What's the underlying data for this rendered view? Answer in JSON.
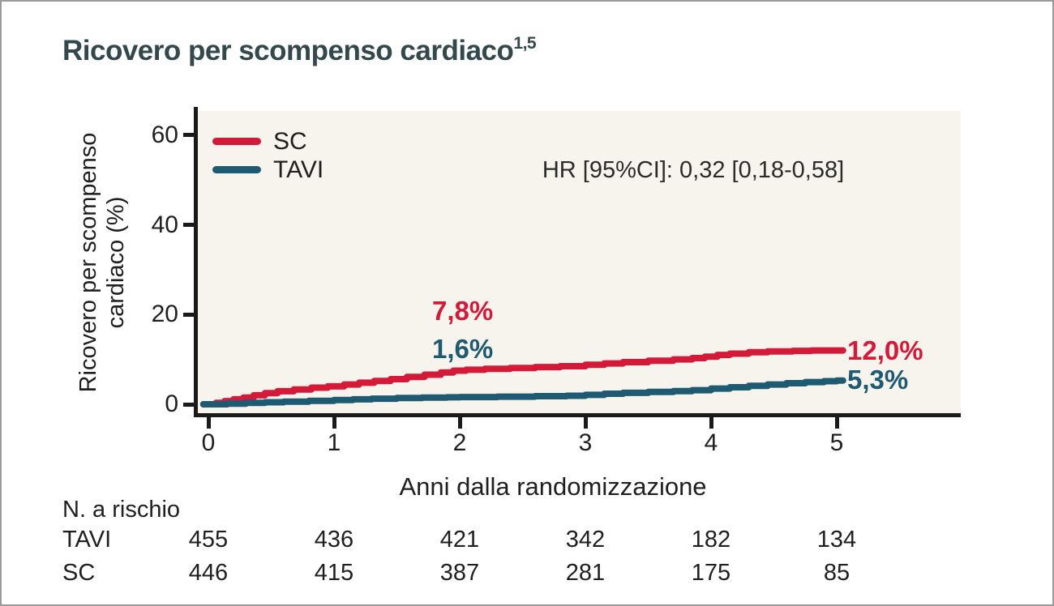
{
  "title": {
    "text": "Ricovero per scompenso cardiaco",
    "superscript": "1,5"
  },
  "colors": {
    "sc_red": "#d41a38",
    "tavi_teal": "#1e5a71",
    "title_teal": "#33484c",
    "plot_background": "#f7f4ee",
    "axis_black": "#1a1a1a",
    "frame_gray": "#9b9b9b"
  },
  "chart_data": {
    "type": "line",
    "style": "kaplan-meier-step",
    "title": "Ricovero per scompenso cardiaco",
    "xlabel": "Anni dalla randomizzazione",
    "ylabel": "Ricovero per scompenso cardiaco (%)",
    "ylabel_lines": [
      "Ricovero per scompenso",
      "cardiaco (%)"
    ],
    "xlim": [
      0,
      5.8
    ],
    "ylim": [
      0,
      65
    ],
    "xticks": [
      0,
      1,
      2,
      3,
      4,
      5
    ],
    "yticks": [
      0,
      20,
      40,
      60
    ],
    "grid": false,
    "legend_position": "top-left-inside",
    "hr_annotation": "HR [95%CI]: 0,32 [0,18-0,58]",
    "series": [
      {
        "name": "SC",
        "color": "#d41a38",
        "landmark_2yr": "7,8%",
        "final_value": "12,0%",
        "points": [
          [
            -0.04,
            0
          ],
          [
            0.06,
            0.3
          ],
          [
            0.13,
            0.7
          ],
          [
            0.2,
            1.1
          ],
          [
            0.28,
            1.5
          ],
          [
            0.36,
            2.0
          ],
          [
            0.45,
            2.5
          ],
          [
            0.55,
            2.9
          ],
          [
            0.68,
            3.3
          ],
          [
            0.82,
            3.7
          ],
          [
            0.95,
            4.0
          ],
          [
            1.08,
            4.4
          ],
          [
            1.2,
            4.8
          ],
          [
            1.32,
            5.2
          ],
          [
            1.45,
            5.6
          ],
          [
            1.58,
            6.1
          ],
          [
            1.72,
            6.6
          ],
          [
            1.85,
            7.1
          ],
          [
            1.95,
            7.5
          ],
          [
            2.05,
            7.7
          ],
          [
            2.2,
            7.9
          ],
          [
            2.4,
            8.1
          ],
          [
            2.6,
            8.3
          ],
          [
            2.8,
            8.5
          ],
          [
            3.0,
            8.8
          ],
          [
            3.15,
            9.1
          ],
          [
            3.3,
            9.4
          ],
          [
            3.5,
            9.7
          ],
          [
            3.7,
            10.0
          ],
          [
            3.85,
            10.3
          ],
          [
            3.95,
            10.6
          ],
          [
            4.05,
            11.0
          ],
          [
            4.15,
            11.3
          ],
          [
            4.3,
            11.6
          ],
          [
            4.45,
            11.8
          ],
          [
            4.65,
            11.9
          ],
          [
            4.8,
            12.0
          ],
          [
            5.05,
            12.0
          ]
        ]
      },
      {
        "name": "TAVI",
        "color": "#1e5a71",
        "landmark_2yr": "1,6%",
        "final_value": "5,3%",
        "points": [
          [
            -0.04,
            0
          ],
          [
            0.15,
            0.15
          ],
          [
            0.3,
            0.3
          ],
          [
            0.45,
            0.45
          ],
          [
            0.6,
            0.6
          ],
          [
            0.8,
            0.75
          ],
          [
            1.0,
            0.95
          ],
          [
            1.15,
            1.1
          ],
          [
            1.3,
            1.25
          ],
          [
            1.5,
            1.4
          ],
          [
            1.7,
            1.5
          ],
          [
            1.9,
            1.55
          ],
          [
            2.0,
            1.6
          ],
          [
            2.3,
            1.7
          ],
          [
            2.6,
            1.8
          ],
          [
            2.85,
            1.9
          ],
          [
            3.0,
            2.1
          ],
          [
            3.15,
            2.35
          ],
          [
            3.3,
            2.55
          ],
          [
            3.5,
            2.75
          ],
          [
            3.7,
            2.95
          ],
          [
            3.85,
            3.15
          ],
          [
            4.0,
            3.5
          ],
          [
            4.15,
            3.8
          ],
          [
            4.3,
            4.1
          ],
          [
            4.45,
            4.4
          ],
          [
            4.6,
            4.7
          ],
          [
            4.75,
            4.95
          ],
          [
            4.9,
            5.15
          ],
          [
            5.0,
            5.3
          ],
          [
            5.05,
            5.3
          ]
        ]
      }
    ],
    "value_labels": {
      "sc_mid": "7,8%",
      "tavi_mid": "1,6%",
      "sc_end": "12,0%",
      "tavi_end": "5,3%"
    }
  },
  "risk_table": {
    "title": "N. a rischio",
    "columns": [
      0,
      1,
      2,
      3,
      4,
      5
    ],
    "rows": [
      {
        "label": "TAVI",
        "values": [
          "455",
          "436",
          "421",
          "342",
          "182",
          "134"
        ]
      },
      {
        "label": "SC",
        "values": [
          "446",
          "415",
          "387",
          "281",
          "175",
          "85"
        ]
      }
    ]
  }
}
